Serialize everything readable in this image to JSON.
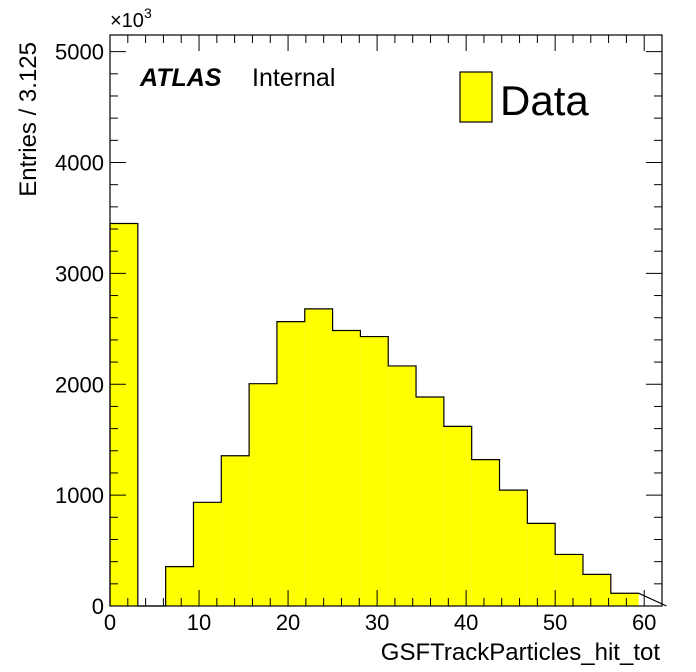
{
  "chart_data": {
    "type": "bar",
    "xlabel": "GSFTrackParticles_hit_tot",
    "ylabel": "Entries / 3.125",
    "y_multiplier": {
      "base": "×10",
      "exponent": "3"
    },
    "xlim": [
      0,
      62
    ],
    "ylim": [
      0,
      5150
    ],
    "grid": false,
    "bin_width": 3.125,
    "x_ticks": [
      0,
      10,
      20,
      30,
      40,
      50,
      60
    ],
    "y_ticks": [
      0,
      1000,
      2000,
      3000,
      4000,
      5000
    ],
    "series": [
      {
        "name": "Data",
        "color": "#ffff00",
        "bin_edges": [
          0,
          3.125,
          6.25,
          9.375,
          12.5,
          15.625,
          18.75,
          21.875,
          25,
          28.125,
          31.25,
          34.375,
          37.5,
          40.625,
          43.75,
          46.875,
          50,
          53.125,
          56.25,
          59.375
        ],
        "values": [
          3450,
          0,
          355,
          935,
          1355,
          2005,
          2565,
          2680,
          2485,
          2430,
          2165,
          1885,
          1620,
          1320,
          1045,
          745,
          465,
          285,
          115
        ]
      }
    ],
    "legend": {
      "position": "top-right",
      "entries": [
        "Data"
      ]
    }
  },
  "labels": {
    "atlas": "ATLAS",
    "internal": "Internal"
  }
}
